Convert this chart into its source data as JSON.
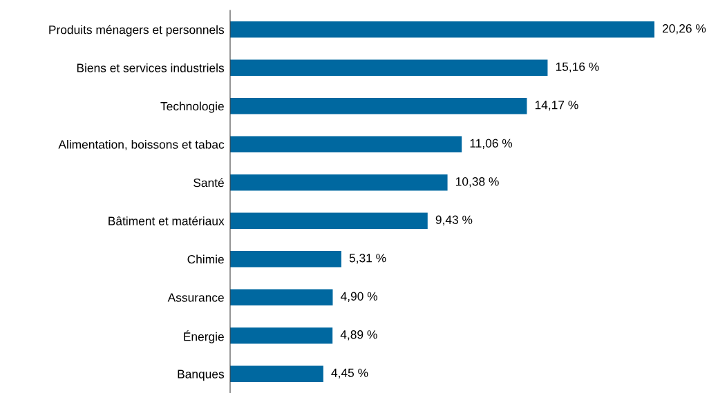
{
  "chart_data": {
    "type": "bar",
    "orientation": "horizontal",
    "categories": [
      "Produits ménagers et personnels",
      "Biens et services industriels",
      "Technologie",
      "Alimentation, boissons et tabac",
      "Santé",
      "Bâtiment et matériaux",
      "Chimie",
      "Assurance",
      "Énergie",
      "Banques"
    ],
    "values": [
      20.26,
      15.16,
      14.17,
      11.06,
      10.38,
      9.43,
      5.31,
      4.9,
      4.89,
      4.45
    ],
    "value_labels": [
      "20,26 %",
      "15,16 %",
      "14,17 %",
      "11,06 %",
      "10,38 %",
      "9,43 %",
      "5,31 %",
      "4,90 %",
      "4,89 %",
      "4,45 %"
    ],
    "color": "#0068a0",
    "grid": false,
    "legend": false
  }
}
